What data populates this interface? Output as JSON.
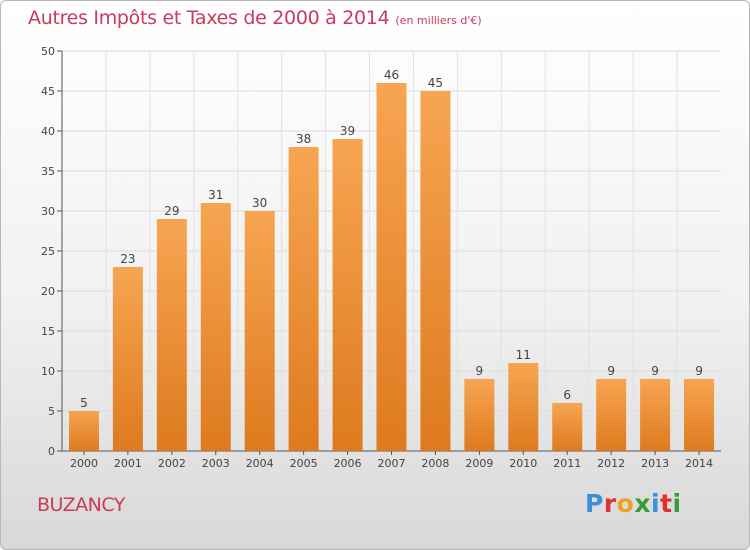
{
  "header": {
    "title": "Autres Impôts et Taxes de 2000 à 2014",
    "unit": "(en milliers d'€)"
  },
  "footer": {
    "commune": "BUZANCY",
    "logo_text": "Proxiti"
  },
  "colors": {
    "bar_light": "#f7a552",
    "bar_dark": "#de7a1e",
    "title": "#c83b5a"
  },
  "chart_data": {
    "type": "bar",
    "title": "Autres Impôts et Taxes de 2000 à 2014",
    "subtitle": "(en milliers d'€)",
    "xlabel": "",
    "ylabel": "",
    "categories": [
      "2000",
      "2001",
      "2002",
      "2003",
      "2004",
      "2005",
      "2006",
      "2007",
      "2008",
      "2009",
      "2010",
      "2011",
      "2012",
      "2013",
      "2014"
    ],
    "values": [
      5,
      23,
      29,
      31,
      30,
      38,
      39,
      46,
      45,
      9,
      11,
      6,
      9,
      9,
      9
    ],
    "ylim": [
      0,
      50
    ],
    "yticks": [
      0,
      5,
      10,
      15,
      20,
      25,
      30,
      35,
      40,
      45,
      50
    ],
    "grid": true,
    "legend": "none"
  }
}
